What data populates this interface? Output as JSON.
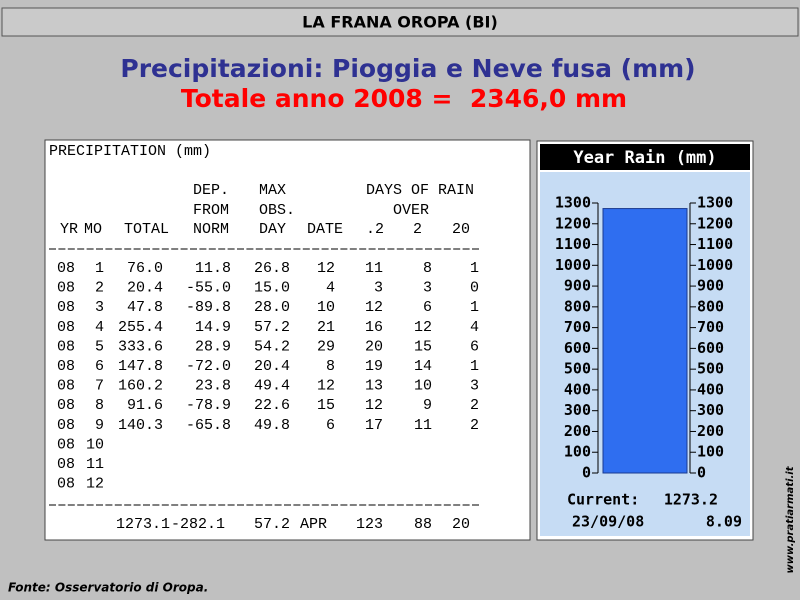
{
  "header": {
    "title": "LA FRANA OROPA (BI)"
  },
  "title": "Precipitazioni: Pioggia e Neve fusa (mm)",
  "subtitle": "Totale anno 2008 =  2346,0 mm",
  "table": {
    "title": "PRECIPITATION (mm)",
    "header_rows": [
      [
        "DEP.",
        "MAX",
        "DAYS OF RAIN"
      ],
      [
        "FROM",
        "OBS.",
        "OVER"
      ],
      [
        "YR",
        "MO",
        "TOTAL",
        "NORM",
        "DAY",
        "DATE",
        ".2",
        "2",
        "20"
      ]
    ],
    "rows": [
      [
        "08",
        "1",
        "76.0",
        "11.8",
        "26.8",
        "12",
        "11",
        "8",
        "1"
      ],
      [
        "08",
        "2",
        "20.4",
        "-55.0",
        "15.0",
        "4",
        "3",
        "3",
        "0"
      ],
      [
        "08",
        "3",
        "47.8",
        "-89.8",
        "28.0",
        "10",
        "12",
        "6",
        "1"
      ],
      [
        "08",
        "4",
        "255.4",
        "14.9",
        "57.2",
        "21",
        "16",
        "12",
        "4"
      ],
      [
        "08",
        "5",
        "333.6",
        "28.9",
        "54.2",
        "29",
        "20",
        "15",
        "6"
      ],
      [
        "08",
        "6",
        "147.8",
        "-72.0",
        "20.4",
        "8",
        "19",
        "14",
        "1"
      ],
      [
        "08",
        "7",
        "160.2",
        "23.8",
        "49.4",
        "12",
        "13",
        "10",
        "3"
      ],
      [
        "08",
        "8",
        "91.6",
        "-78.9",
        "22.6",
        "15",
        "12",
        "9",
        "2"
      ],
      [
        "08",
        "9",
        "140.3",
        "-65.8",
        "49.8",
        "6",
        "17",
        "11",
        "2"
      ],
      [
        "08",
        "10"
      ],
      [
        "08",
        "11"
      ],
      [
        "08",
        "12"
      ]
    ],
    "totals": [
      "1273.1",
      "-282.1",
      "57.2",
      "APR",
      "123",
      "88",
      "20"
    ]
  },
  "chart_data": {
    "type": "bar",
    "title": "Year Rain (mm)",
    "values": [
      1273.2
    ],
    "color": "#2f6ef0",
    "ylim": [
      0,
      1300
    ],
    "yticks": [
      0,
      100,
      200,
      300,
      400,
      500,
      600,
      700,
      800,
      900,
      1000,
      1100,
      1200,
      1300
    ],
    "current_label": "Current:",
    "date": "23/09/08",
    "time": "8.09"
  },
  "footer": {
    "source": "Fonte: Osservatorio di Oropa.",
    "site": "www.pratiarmati.it"
  }
}
